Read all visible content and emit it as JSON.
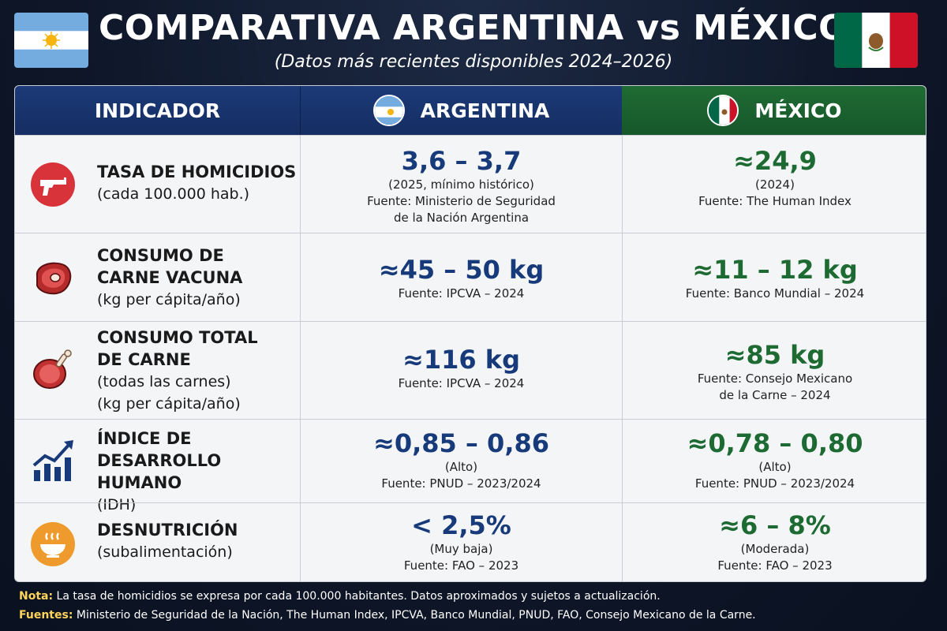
{
  "header": {
    "title": "COMPARATIVA ARGENTINA vs MÉXICO",
    "subtitle": "(Datos más recientes disponibles 2024–2026)"
  },
  "columns": {
    "indicator": "INDICADOR",
    "argentina": "ARGENTINA",
    "mexico": "MÉXICO"
  },
  "rows": [
    {
      "icon": "pistol-icon",
      "label": [
        "TASA DE HOMICIDIOS"
      ],
      "note": [
        "(cada 100.000 hab.)"
      ],
      "argentina": {
        "value": "3,6 – 3,7",
        "details": [
          "(2025, mínimo histórico)",
          "Fuente: Ministerio de Seguridad",
          "de la Nación Argentina"
        ]
      },
      "mexico": {
        "value": "≈24,9",
        "details": [
          "(2024)",
          "Fuente: The Human Index"
        ]
      }
    },
    {
      "icon": "steak-icon",
      "label": [
        "CONSUMO DE",
        "CARNE VACUNA"
      ],
      "note": [
        "(kg per cápita/año)"
      ],
      "argentina": {
        "value": "≈45 – 50 kg",
        "details": [
          "Fuente: IPCVA – 2024"
        ]
      },
      "mexico": {
        "value": "≈11 – 12 kg",
        "details": [
          "Fuente: Banco Mundial – 2024"
        ]
      }
    },
    {
      "icon": "ham-icon",
      "label": [
        "CONSUMO TOTAL",
        "DE CARNE"
      ],
      "note": [
        "(todas las carnes)",
        "(kg per cápita/año)"
      ],
      "argentina": {
        "value": "≈116 kg",
        "details": [
          "Fuente: IPCVA – 2024"
        ]
      },
      "mexico": {
        "value": "≈85 kg",
        "details": [
          "Fuente: Consejo Mexicano",
          "de la Carne – 2024"
        ]
      }
    },
    {
      "icon": "growth-chart-icon",
      "label": [
        "ÍNDICE DE",
        "DESARROLLO HUMANO"
      ],
      "note": [
        "(IDH)"
      ],
      "argentina": {
        "value": "≈0,85 – 0,86",
        "details": [
          "(Alto)",
          "Fuente: PNUD – 2023/2024"
        ]
      },
      "mexico": {
        "value": "≈0,78 – 0,80",
        "details": [
          "(Alto)",
          "Fuente: PNUD – 2023/2024"
        ]
      }
    },
    {
      "icon": "bowl-icon",
      "label": [
        "DESNUTRICIÓN"
      ],
      "note": [
        "(subalimentación)"
      ],
      "argentina": {
        "value": "< 2,5%",
        "details": [
          "(Muy baja)",
          "Fuente: FAO – 2023"
        ]
      },
      "mexico": {
        "value": "≈6 – 8%",
        "details": [
          "(Moderada)",
          "Fuente: FAO – 2023"
        ]
      }
    }
  ],
  "footer": {
    "note_label": "Nota:",
    "note_text": " La tasa de homicidios se expresa por cada 100.000 habitantes. Datos aproximados y sujetos a actualización.",
    "sources_label": "Fuentes:",
    "sources_text": " Ministerio de Seguridad de la Nación, The Human Index, IPCVA, Banco Mundial, PNUD, FAO, Consejo Mexicano de la Carne."
  },
  "colors": {
    "argentina_blue": "#173a7a",
    "mexico_green": "#1d6a32",
    "header_dark": "#0e1628"
  }
}
